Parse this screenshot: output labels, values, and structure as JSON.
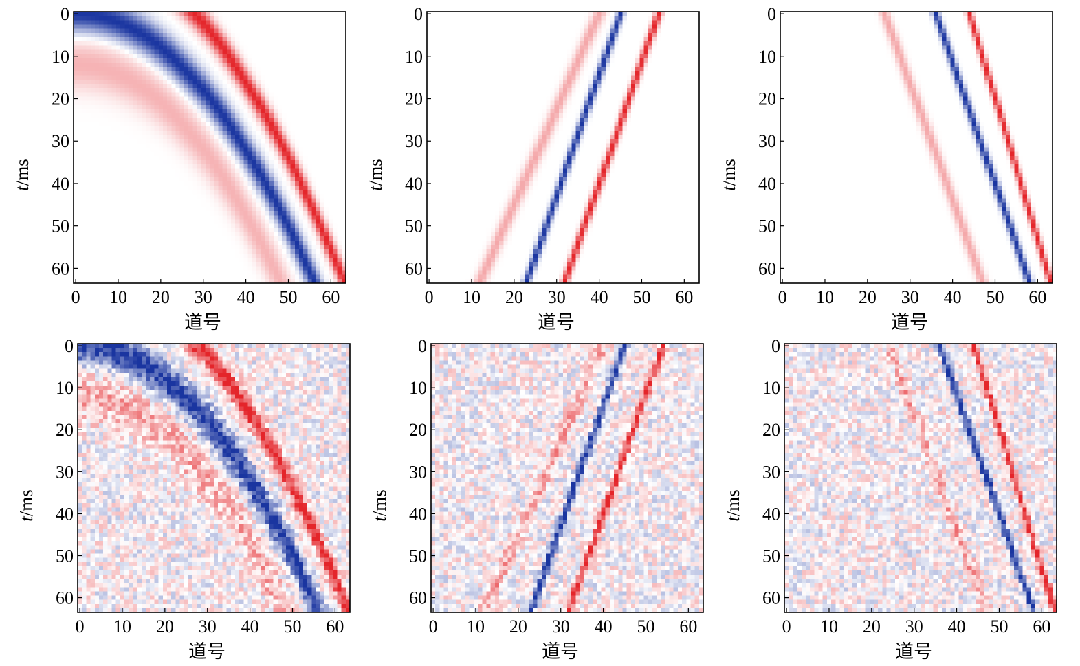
{
  "figure": {
    "colormap": {
      "negative": "#1a35a0",
      "zero": "#ffffff",
      "positive": "#e4252a"
    },
    "panels_layout": "2 rows x 3 columns"
  },
  "chart_data": [
    {
      "type": "heatmap",
      "panel": "top-left",
      "xlabel": "道号",
      "ylabel": "t/ms",
      "xticks": [
        0,
        10,
        20,
        30,
        40,
        50,
        60
      ],
      "yticks": [
        0,
        10,
        20,
        30,
        40,
        50,
        60
      ],
      "xlim": [
        0,
        63
      ],
      "ylim": [
        63,
        0
      ],
      "grid": false,
      "noise": false,
      "events": [
        {
          "shape": "curved",
          "polarity": "negative",
          "t_at_trace_0": 0,
          "t_at_trace_56": 63,
          "width_ms": 10
        },
        {
          "shape": "curved",
          "polarity": "positive",
          "t_at_trace_0": 12,
          "t_at_trace_48": 63,
          "width_ms": 14,
          "amplitude": 0.35
        },
        {
          "shape": "curved",
          "polarity": "positive",
          "t_at_trace_28": 0,
          "t_at_trace_63": 63,
          "width_ms": 8
        }
      ]
    },
    {
      "type": "heatmap",
      "panel": "top-middle",
      "xlabel": "道号",
      "ylabel": "t/ms",
      "xticks": [
        0,
        10,
        20,
        30,
        40,
        50,
        60
      ],
      "yticks": [
        0,
        10,
        20,
        30,
        40,
        50,
        60
      ],
      "xlim": [
        0,
        63
      ],
      "ylim": [
        63,
        0
      ],
      "grid": false,
      "noise": false,
      "events": [
        {
          "shape": "linear",
          "polarity": "positive",
          "t_at_trace_40": 0,
          "t_at_trace_12": 63,
          "width_ms": 8,
          "amplitude": 0.4
        },
        {
          "shape": "linear",
          "polarity": "negative",
          "t_at_trace_45": 0,
          "t_at_trace_23": 63,
          "width_ms": 6
        },
        {
          "shape": "linear",
          "polarity": "positive",
          "t_at_trace_54": 0,
          "t_at_trace_32": 63,
          "width_ms": 6
        }
      ]
    },
    {
      "type": "heatmap",
      "panel": "top-right",
      "xlabel": "道号",
      "ylabel": "t/ms",
      "xticks": [
        0,
        10,
        20,
        30,
        40,
        50,
        60
      ],
      "yticks": [
        0,
        10,
        20,
        30,
        40,
        50,
        60
      ],
      "xlim": [
        0,
        63
      ],
      "ylim": [
        63,
        0
      ],
      "grid": false,
      "noise": false,
      "events": [
        {
          "shape": "linear",
          "polarity": "positive",
          "t_at_trace_24": 0,
          "t_at_trace_47": 63,
          "width_ms": 8,
          "amplitude": 0.4
        },
        {
          "shape": "linear",
          "polarity": "negative",
          "t_at_trace_36": 0,
          "t_at_trace_58": 63,
          "width_ms": 6
        },
        {
          "shape": "linear",
          "polarity": "positive",
          "t_at_trace_44": 0,
          "t_at_trace_63": 63,
          "width_ms": 6
        }
      ]
    },
    {
      "type": "heatmap",
      "panel": "bottom-left",
      "xlabel": "道号",
      "ylabel": "t/ms",
      "xticks": [
        0,
        10,
        20,
        30,
        40,
        50,
        60
      ],
      "yticks": [
        0,
        10,
        20,
        30,
        40,
        50,
        60
      ],
      "xlim": [
        0,
        63
      ],
      "ylim": [
        63,
        0
      ],
      "grid": false,
      "noise": true,
      "events": [
        {
          "shape": "curved",
          "polarity": "negative",
          "t_at_trace_0": 0,
          "t_at_trace_56": 63,
          "width_ms": 10
        },
        {
          "shape": "curved",
          "polarity": "positive",
          "t_at_trace_0": 12,
          "t_at_trace_48": 63,
          "width_ms": 14,
          "amplitude": 0.35
        },
        {
          "shape": "curved",
          "polarity": "positive",
          "t_at_trace_28": 0,
          "t_at_trace_63": 63,
          "width_ms": 8
        }
      ]
    },
    {
      "type": "heatmap",
      "panel": "bottom-middle",
      "xlabel": "道号",
      "ylabel": "t/ms",
      "xticks": [
        0,
        10,
        20,
        30,
        40,
        50,
        60
      ],
      "yticks": [
        0,
        10,
        20,
        30,
        40,
        50,
        60
      ],
      "xlim": [
        0,
        63
      ],
      "ylim": [
        63,
        0
      ],
      "grid": false,
      "noise": true,
      "events": [
        {
          "shape": "linear",
          "polarity": "positive",
          "t_at_trace_40": 0,
          "t_at_trace_12": 63,
          "width_ms": 8,
          "amplitude": 0.4
        },
        {
          "shape": "linear",
          "polarity": "negative",
          "t_at_trace_45": 0,
          "t_at_trace_23": 63,
          "width_ms": 6
        },
        {
          "shape": "linear",
          "polarity": "positive",
          "t_at_trace_54": 0,
          "t_at_trace_32": 63,
          "width_ms": 6
        }
      ]
    },
    {
      "type": "heatmap",
      "panel": "bottom-right",
      "xlabel": "道号",
      "ylabel": "t/ms",
      "xticks": [
        0,
        10,
        20,
        30,
        40,
        50,
        60
      ],
      "yticks": [
        0,
        10,
        20,
        30,
        40,
        50,
        60
      ],
      "xlim": [
        0,
        63
      ],
      "ylim": [
        63,
        0
      ],
      "grid": false,
      "noise": true,
      "events": [
        {
          "shape": "linear",
          "polarity": "positive",
          "t_at_trace_24": 0,
          "t_at_trace_47": 63,
          "width_ms": 8,
          "amplitude": 0.4
        },
        {
          "shape": "linear",
          "polarity": "negative",
          "t_at_trace_36": 0,
          "t_at_trace_58": 63,
          "width_ms": 6
        },
        {
          "shape": "linear",
          "polarity": "positive",
          "t_at_trace_44": 0,
          "t_at_trace_63": 63,
          "width_ms": 6
        }
      ]
    }
  ]
}
